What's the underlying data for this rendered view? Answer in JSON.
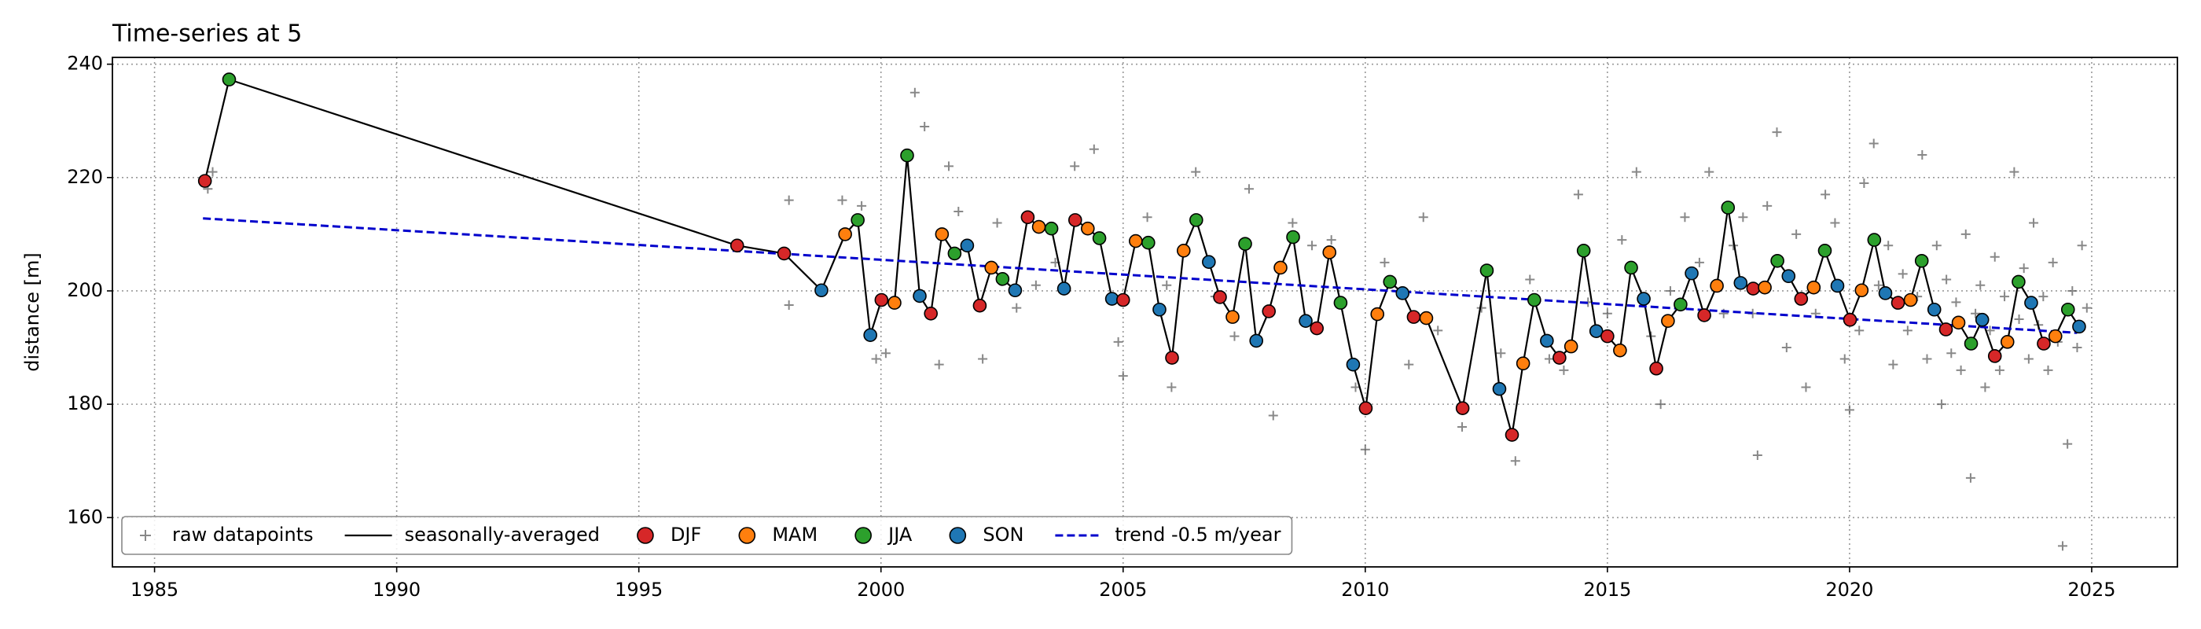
{
  "chart_data": {
    "type": "line",
    "title": "Time-series at 5",
    "ylabel": "distance [m]",
    "xlim": [
      1984.13,
      2026.77
    ],
    "ylim": [
      151.3,
      241.2
    ],
    "xticks": [
      1985,
      1990,
      1995,
      2000,
      2005,
      2010,
      2015,
      2020,
      2025
    ],
    "yticks": [
      160,
      180,
      200,
      220,
      240
    ],
    "grid": true,
    "legend": "lower left",
    "raw": {
      "name": "raw datapoints",
      "color": "#555555",
      "x": [
        1986.1,
        1986.2,
        1998.1,
        1998.1,
        1999.2,
        1999.6,
        1999.9,
        2000.1,
        2000.7,
        2000.9,
        2001.2,
        2001.4,
        2001.6,
        2002.1,
        2002.4,
        2002.8,
        2003.2,
        2003.6,
        2004.0,
        2004.4,
        2004.9,
        2005.0,
        2005.5,
        2005.9,
        2006.0,
        2006.5,
        2006.9,
        2007.3,
        2007.6,
        2008.1,
        2008.5,
        2008.9,
        2009.3,
        2009.8,
        2010.0,
        2010.4,
        2010.9,
        2011.2,
        2011.5,
        2012.0,
        2012.4,
        2012.8,
        2013.1,
        2013.4,
        2013.8,
        2014.1,
        2014.4,
        2014.6,
        2015.0,
        2015.3,
        2015.6,
        2015.9,
        2016.1,
        2016.3,
        2016.6,
        2016.9,
        2017.1,
        2017.4,
        2017.6,
        2017.8,
        2018.0,
        2018.1,
        2018.3,
        2018.5,
        2018.7,
        2018.9,
        2019.1,
        2019.3,
        2019.5,
        2019.7,
        2019.9,
        2020.0,
        2020.2,
        2020.3,
        2020.5,
        2020.6,
        2020.8,
        2020.9,
        2021.1,
        2021.2,
        2021.4,
        2021.5,
        2021.6,
        2021.8,
        2021.9,
        2022.0,
        2022.1,
        2022.2,
        2022.3,
        2022.4,
        2022.5,
        2022.6,
        2022.7,
        2022.8,
        2022.9,
        2023.0,
        2023.1,
        2023.2,
        2023.3,
        2023.4,
        2023.5,
        2023.6,
        2023.7,
        2023.8,
        2023.9,
        2024.0,
        2024.1,
        2024.2,
        2024.3,
        2024.4,
        2024.5,
        2024.6,
        2024.7,
        2024.8,
        2024.9
      ],
      "values": [
        218,
        221,
        216,
        197.5,
        216,
        215,
        188,
        189,
        235,
        229,
        187,
        222,
        214,
        188,
        212,
        197,
        201,
        205,
        222,
        225,
        191,
        185,
        213,
        201,
        183,
        221,
        199,
        192,
        218,
        178,
        212,
        208,
        209,
        183,
        172,
        205,
        187,
        213,
        193,
        176,
        197,
        189,
        170,
        202,
        188,
        186,
        217,
        198,
        196,
        209,
        221,
        192,
        180,
        200,
        213,
        205,
        221,
        196,
        208,
        213,
        196,
        171,
        215,
        228,
        190,
        210,
        183,
        196,
        217,
        212,
        188,
        179,
        193,
        219,
        226,
        201,
        208,
        187,
        203,
        193,
        199,
        224,
        188,
        208,
        180,
        202,
        189,
        198,
        186,
        210,
        167,
        196,
        201,
        183,
        193,
        206,
        186,
        199,
        191,
        221,
        195,
        204,
        188,
        212,
        194,
        199,
        186,
        205,
        191,
        155,
        173,
        200,
        190,
        208,
        197
      ]
    },
    "series": [
      {
        "name": "seasonally-averaged",
        "color": "#000000",
        "x": [
          1986.04,
          1986.54,
          1997.03,
          1998.0,
          1998.77,
          1999.26,
          1999.52,
          1999.78,
          2000.01,
          2000.28,
          2000.54,
          2000.8,
          2001.03,
          2001.26,
          2001.52,
          2001.78,
          2002.04,
          2002.28,
          2002.51,
          2002.77,
          2003.03,
          2003.26,
          2003.52,
          2003.78,
          2004.01,
          2004.27,
          2004.51,
          2004.77,
          2005.0,
          2005.26,
          2005.52,
          2005.75,
          2006.01,
          2006.25,
          2006.51,
          2006.77,
          2007.0,
          2007.26,
          2007.52,
          2007.75,
          2008.01,
          2008.25,
          2008.51,
          2008.77,
          2009.0,
          2009.26,
          2009.49,
          2009.75,
          2010.01,
          2010.25,
          2010.51,
          2010.77,
          2011.0,
          2011.26,
          2012.01,
          2012.51,
          2012.77,
          2013.03,
          2013.26,
          2013.49,
          2013.75,
          2014.01,
          2014.25,
          2014.51,
          2014.77,
          2015.0,
          2015.26,
          2015.49,
          2015.75,
          2016.01,
          2016.25,
          2016.51,
          2016.74,
          2017.0,
          2017.26,
          2017.49,
          2017.75,
          2018.01,
          2018.25,
          2018.51,
          2018.74,
          2019.0,
          2019.26,
          2019.49,
          2019.75,
          2020.01,
          2020.25,
          2020.51,
          2020.74,
          2021.0,
          2021.26,
          2021.49,
          2021.75,
          2021.99,
          2022.25,
          2022.51,
          2022.74,
          2023.0,
          2023.26,
          2023.49,
          2023.75,
          2024.01,
          2024.25,
          2024.51,
          2024.74
        ],
        "values": [
          219.4,
          237.3,
          208.0,
          206.6,
          200.1,
          210.0,
          212.5,
          192.2,
          198.4,
          197.9,
          223.9,
          199.1,
          196.0,
          210.0,
          206.6,
          208.0,
          197.4,
          204.1,
          202.1,
          200.1,
          213.0,
          211.3,
          211.0,
          200.4,
          212.5,
          211.0,
          209.3,
          198.6,
          198.4,
          208.8,
          208.5,
          196.7,
          188.2,
          207.1,
          212.5,
          205.1,
          198.9,
          195.4,
          208.3,
          191.2,
          196.4,
          204.1,
          209.5,
          194.7,
          193.4,
          206.8,
          197.9,
          187.0,
          179.3,
          195.9,
          201.6,
          199.6,
          195.4,
          195.2,
          179.3,
          203.6,
          182.7,
          174.6,
          187.2,
          198.4,
          191.2,
          188.2,
          190.2,
          207.1,
          192.9,
          192.0,
          189.5,
          204.1,
          198.6,
          186.3,
          194.7,
          197.6,
          203.1,
          195.7,
          200.9,
          214.7,
          201.4,
          200.4,
          200.6,
          205.3,
          202.6,
          198.6,
          200.6,
          207.1,
          200.9,
          194.9,
          200.1,
          209.0,
          199.6,
          197.9,
          198.4,
          205.3,
          196.7,
          193.2,
          194.4,
          190.7,
          194.9,
          188.5,
          191.0,
          201.6,
          197.9,
          190.7,
          192.0,
          196.7,
          193.7
        ],
        "season": [
          "DJF",
          "JJA",
          "DJF",
          "DJF",
          "SON",
          "MAM",
          "JJA",
          "SON",
          "DJF",
          "MAM",
          "JJA",
          "SON",
          "DJF",
          "MAM",
          "JJA",
          "SON",
          "DJF",
          "MAM",
          "JJA",
          "SON",
          "DJF",
          "MAM",
          "JJA",
          "SON",
          "DJF",
          "MAM",
          "JJA",
          "SON",
          "DJF",
          "MAM",
          "JJA",
          "SON",
          "DJF",
          "MAM",
          "JJA",
          "SON",
          "DJF",
          "MAM",
          "JJA",
          "SON",
          "DJF",
          "MAM",
          "JJA",
          "SON",
          "DJF",
          "MAM",
          "JJA",
          "SON",
          "DJF",
          "MAM",
          "JJA",
          "SON",
          "DJF",
          "MAM",
          "DJF",
          "JJA",
          "SON",
          "DJF",
          "MAM",
          "JJA",
          "SON",
          "DJF",
          "MAM",
          "JJA",
          "SON",
          "DJF",
          "MAM",
          "JJA",
          "SON",
          "DJF",
          "MAM",
          "JJA",
          "SON",
          "DJF",
          "MAM",
          "JJA",
          "SON",
          "DJF",
          "MAM",
          "JJA",
          "SON",
          "DJF",
          "MAM",
          "JJA",
          "SON",
          "DJF",
          "MAM",
          "JJA",
          "SON",
          "DJF",
          "MAM",
          "JJA",
          "SON",
          "DJF",
          "MAM",
          "JJA",
          "SON",
          "DJF",
          "MAM",
          "JJA",
          "SON",
          "DJF",
          "MAM",
          "JJA",
          "SON"
        ]
      }
    ],
    "seasons": [
      {
        "name": "DJF",
        "color": "#d62728"
      },
      {
        "name": "MAM",
        "color": "#ff7f0e"
      },
      {
        "name": "JJA",
        "color": "#2ca02c"
      },
      {
        "name": "SON",
        "color": "#1f77b4"
      }
    ],
    "trend": {
      "name": "trend -0.5 m/year",
      "color": "#0000cc",
      "x": [
        1986,
        2024.7
      ],
      "values": [
        212.8,
        192.6
      ]
    }
  }
}
